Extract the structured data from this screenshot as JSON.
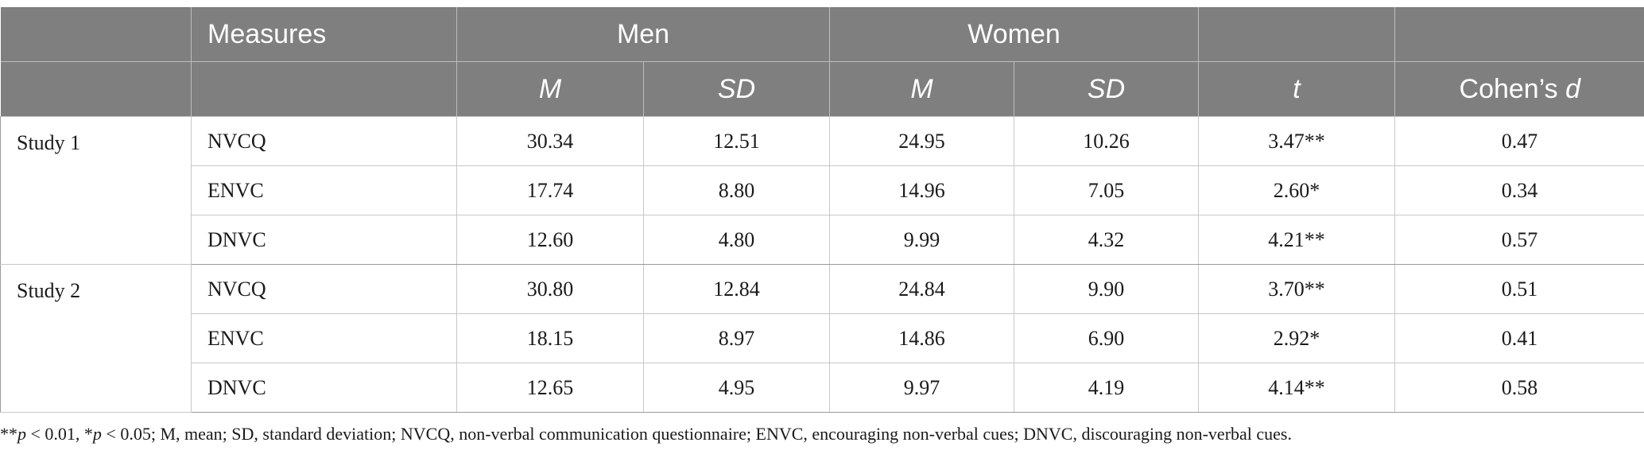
{
  "table": {
    "header": {
      "measures_label": "Measures",
      "men_label": "Men",
      "women_label": "Women",
      "m_label": "M",
      "sd_label": "SD",
      "t_label": "t",
      "cohens_prefix": "Cohen’s ",
      "cohens_d": "d"
    },
    "studies": [
      {
        "label": "Study 1",
        "rows": [
          {
            "measure": "NVCQ",
            "men_m": "30.34",
            "men_sd": "12.51",
            "women_m": "24.95",
            "women_sd": "10.26",
            "t": "3.47**",
            "d": "0.47"
          },
          {
            "measure": "ENVC",
            "men_m": "17.74",
            "men_sd": "8.80",
            "women_m": "14.96",
            "women_sd": "7.05",
            "t": "2.60*",
            "d": "0.34"
          },
          {
            "measure": "DNVC",
            "men_m": "12.60",
            "men_sd": "4.80",
            "women_m": "9.99",
            "women_sd": "4.32",
            "t": "4.21**",
            "d": "0.57"
          }
        ]
      },
      {
        "label": "Study 2",
        "rows": [
          {
            "measure": "NVCQ",
            "men_m": "30.80",
            "men_sd": "12.84",
            "women_m": "24.84",
            "women_sd": "9.90",
            "t": "3.70**",
            "d": "0.51"
          },
          {
            "measure": "ENVC",
            "men_m": "18.15",
            "men_sd": "8.97",
            "women_m": "14.86",
            "women_sd": "6.90",
            "t": "2.92*",
            "d": "0.41"
          },
          {
            "measure": "DNVC",
            "men_m": "12.65",
            "men_sd": "4.95",
            "women_m": "9.97",
            "women_sd": "4.19",
            "t": "4.14**",
            "d": "0.58"
          }
        ]
      }
    ]
  },
  "footnote": {
    "stars2": "**",
    "p1": "p",
    "part1": " < 0.01, *",
    "p2": "p",
    "part2": " < 0.05; M, mean; SD, standard deviation; NVCQ, non-verbal communication questionnaire; ENVC, encouraging non-verbal cues; DNVC, discouraging non-verbal cues."
  }
}
